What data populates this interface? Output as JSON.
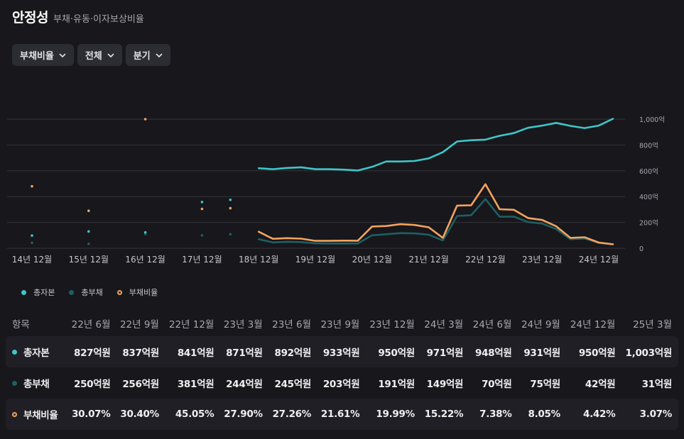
{
  "header": {
    "title": "안정성",
    "subtitle": "부채·유동·이자보상비율"
  },
  "filters": [
    {
      "label": "부채비율"
    },
    {
      "label": "전체"
    },
    {
      "label": "분기"
    }
  ],
  "colors": {
    "total_equity": "#3fc6c8",
    "total_liabilities": "#1f5f62",
    "debt_ratio": "#f4a35d"
  },
  "chart_data": {
    "type": "line",
    "x_tick_labels": [
      "14년 12월",
      "15년 12월",
      "16년 12월",
      "17년 12월",
      "18년 12월",
      "19년 12월",
      "20년 12월",
      "21년 12월",
      "22년 12월",
      "23년 12월",
      "24년 12월"
    ],
    "y_tick_labels": [
      "1,000억",
      "800억",
      "600억",
      "400억",
      "200억",
      "0"
    ],
    "ylim": [
      0,
      1000
    ],
    "grid": true,
    "legend_position": "bottom-left",
    "series": [
      {
        "name": "총자본",
        "key": "total_equity",
        "scatter": [
          [
            0,
            98
          ],
          [
            1,
            130
          ],
          [
            2,
            123
          ],
          [
            3,
            358
          ],
          [
            3.5,
            375
          ]
        ],
        "line": [
          [
            4,
            620
          ],
          [
            4.25,
            612
          ],
          [
            4.5,
            622
          ],
          [
            4.75,
            627
          ],
          [
            5,
            612
          ],
          [
            5.25,
            612
          ],
          [
            5.5,
            609
          ],
          [
            5.75,
            602
          ],
          [
            6,
            630
          ],
          [
            6.25,
            672
          ],
          [
            6.5,
            672
          ],
          [
            6.75,
            676
          ],
          [
            7,
            696
          ],
          [
            7.25,
            744
          ],
          [
            7.5,
            827
          ],
          [
            7.75,
            837
          ],
          [
            8,
            841
          ],
          [
            8.25,
            871
          ],
          [
            8.5,
            892
          ],
          [
            8.75,
            933
          ],
          [
            9,
            950
          ],
          [
            9.25,
            971
          ],
          [
            9.5,
            948
          ],
          [
            9.75,
            931
          ],
          [
            10,
            950
          ],
          [
            10.25,
            1003
          ]
        ]
      },
      {
        "name": "총부채",
        "key": "total_liabilities",
        "scatter": [
          [
            0,
            42
          ],
          [
            1,
            34
          ],
          [
            2,
            110
          ],
          [
            3,
            100
          ],
          [
            3.5,
            108
          ]
        ],
        "line": [
          [
            4,
            70
          ],
          [
            4.25,
            45
          ],
          [
            4.5,
            50
          ],
          [
            4.75,
            48
          ],
          [
            5,
            38
          ],
          [
            5.25,
            37
          ],
          [
            5.5,
            36
          ],
          [
            5.75,
            37
          ],
          [
            6,
            100
          ],
          [
            6.25,
            108
          ],
          [
            6.5,
            117
          ],
          [
            6.75,
            115
          ],
          [
            7,
            105
          ],
          [
            7.25,
            60
          ],
          [
            7.5,
            250
          ],
          [
            7.75,
            256
          ],
          [
            8,
            381
          ],
          [
            8.25,
            244
          ],
          [
            8.5,
            245
          ],
          [
            8.75,
            203
          ],
          [
            9,
            191
          ],
          [
            9.25,
            149
          ],
          [
            9.5,
            70
          ],
          [
            9.75,
            75
          ],
          [
            10,
            42
          ],
          [
            10.25,
            31
          ]
        ]
      },
      {
        "name": "부채비율",
        "key": "debt_ratio",
        "scatter": [
          [
            0,
            480
          ],
          [
            1,
            290
          ],
          [
            2,
            1000
          ],
          [
            3,
            305
          ],
          [
            3.5,
            310
          ]
        ],
        "line": [
          [
            4,
            128
          ],
          [
            4.25,
            73
          ],
          [
            4.5,
            78
          ],
          [
            4.75,
            74
          ],
          [
            5,
            57
          ],
          [
            5.25,
            57
          ],
          [
            5.5,
            59
          ],
          [
            5.75,
            58
          ],
          [
            6,
            168
          ],
          [
            6.25,
            172
          ],
          [
            6.5,
            186
          ],
          [
            6.75,
            180
          ],
          [
            7,
            162
          ],
          [
            7.25,
            80
          ],
          [
            7.5,
            330
          ],
          [
            7.75,
            333
          ],
          [
            8,
            496
          ],
          [
            8.25,
            302
          ],
          [
            8.5,
            298
          ],
          [
            8.75,
            234
          ],
          [
            9,
            219
          ],
          [
            9.25,
            170
          ],
          [
            9.5,
            80
          ],
          [
            9.75,
            85
          ],
          [
            10,
            44
          ],
          [
            10.25,
            31
          ]
        ]
      }
    ]
  },
  "legend": [
    {
      "label": "총자본",
      "key": "total_equity"
    },
    {
      "label": "총부채",
      "key": "total_liabilities"
    },
    {
      "label": "부채비율",
      "key": "debt_ratio"
    }
  ],
  "table": {
    "header_label": "항목",
    "columns": [
      "22년 6월",
      "22년 9월",
      "22년 12월",
      "23년 3월",
      "23년 6월",
      "23년 9월",
      "23년 12월",
      "24년 3월",
      "24년 6월",
      "24년 9월",
      "24년 12월",
      "25년 3월"
    ],
    "rows": [
      {
        "label": "총자본",
        "key": "total_equity",
        "values": [
          "827억원",
          "837억원",
          "841억원",
          "871억원",
          "892억원",
          "933억원",
          "950억원",
          "971억원",
          "948억원",
          "931억원",
          "950억원",
          "1,003억원"
        ]
      },
      {
        "label": "총부채",
        "key": "total_liabilities",
        "values": [
          "250억원",
          "256억원",
          "381억원",
          "244억원",
          "245억원",
          "203억원",
          "191억원",
          "149억원",
          "70억원",
          "75억원",
          "42억원",
          "31억원"
        ]
      },
      {
        "label": "부채비율",
        "key": "debt_ratio",
        "values": [
          "30.07%",
          "30.40%",
          "45.05%",
          "27.90%",
          "27.26%",
          "21.61%",
          "19.99%",
          "15.22%",
          "7.38%",
          "8.05%",
          "4.42%",
          "3.07%"
        ]
      }
    ]
  }
}
